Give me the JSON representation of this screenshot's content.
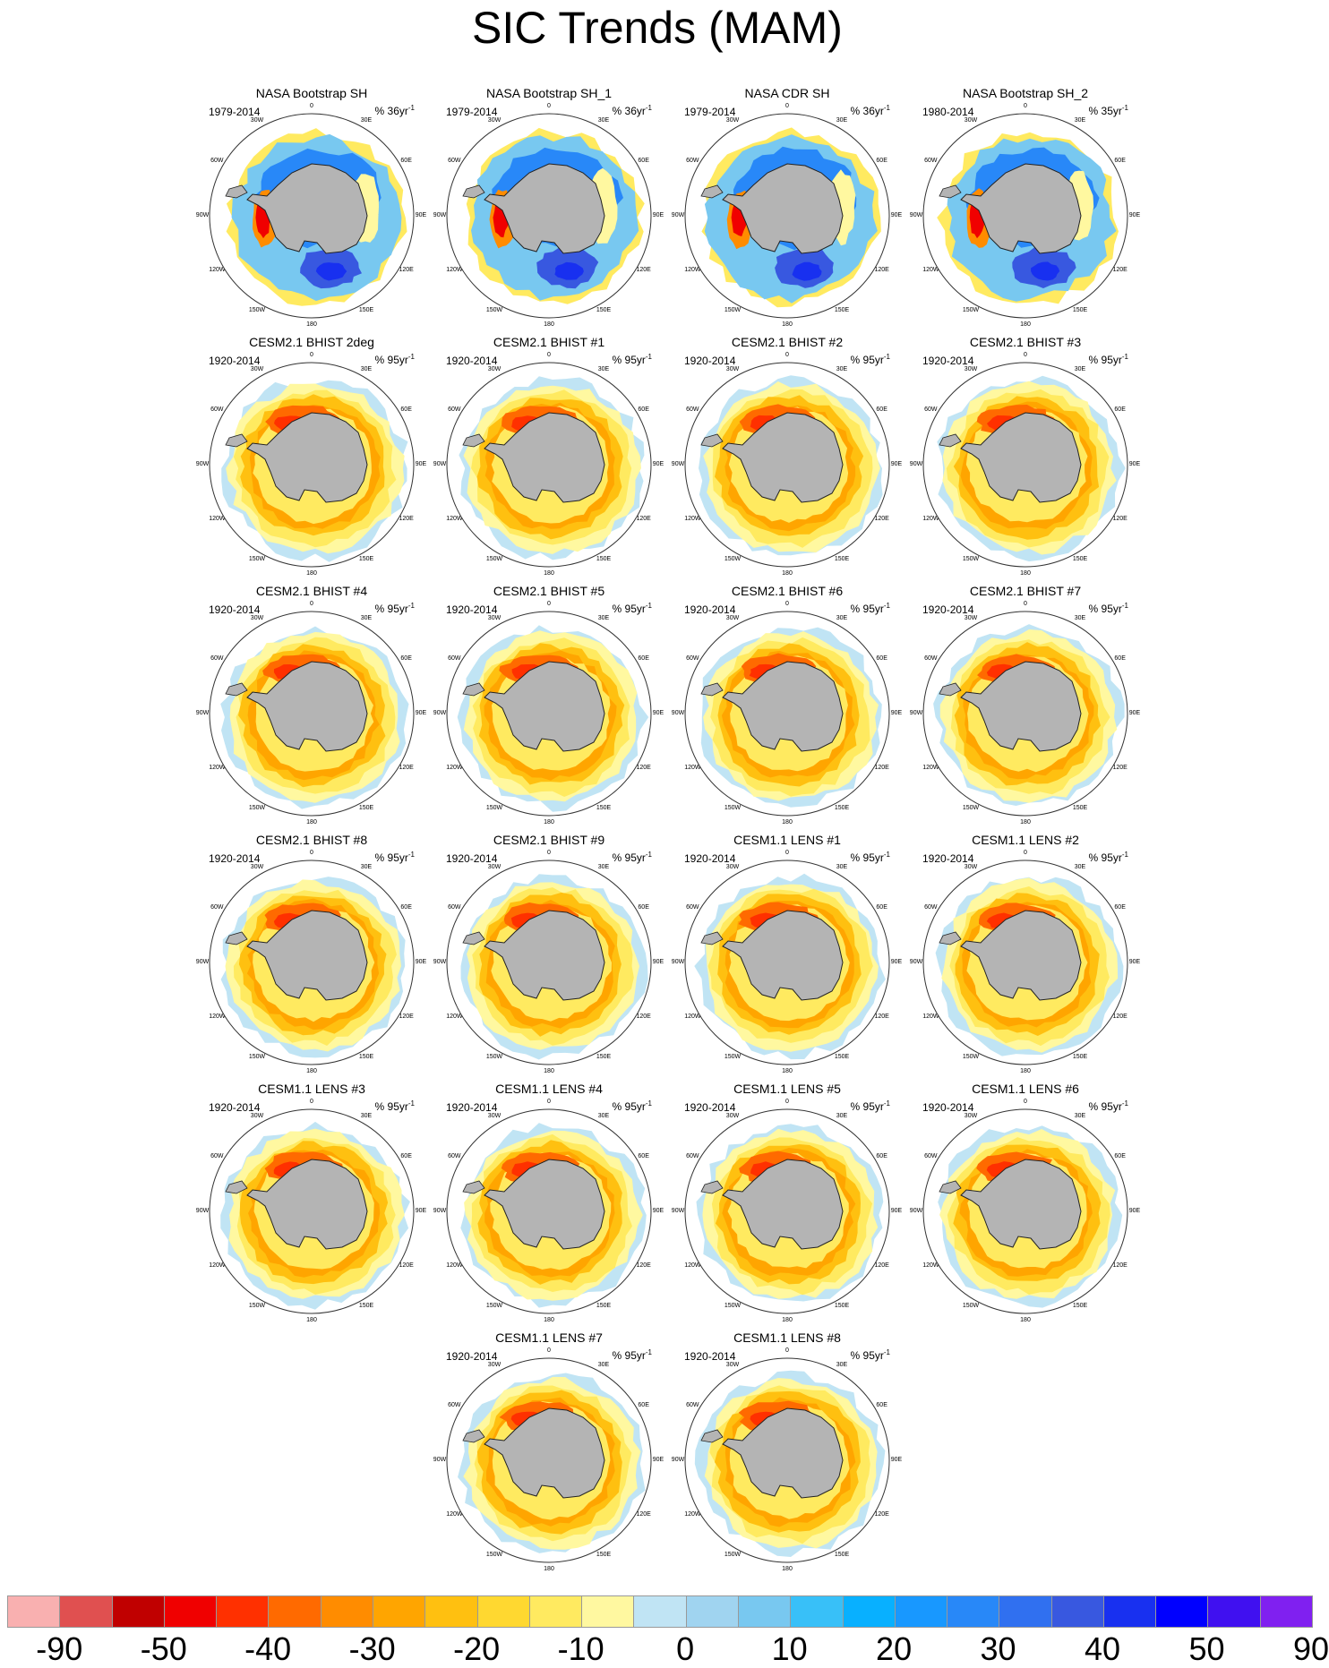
{
  "title": "SIC Trends (MAM)",
  "ring_labels": [
    "0",
    "30E",
    "60E",
    "90E",
    "120E",
    "150E",
    "180",
    "150W",
    "120W",
    "90W",
    "60W",
    "30W"
  ],
  "panels": [
    {
      "title": "NASA Bootstrap SH",
      "period": "1979-2014",
      "units": "% 36yr",
      "pattern": "obs"
    },
    {
      "title": "NASA Bootstrap SH_1",
      "period": "1979-2014",
      "units": "% 36yr",
      "pattern": "obs"
    },
    {
      "title": "NASA CDR SH",
      "period": "1979-2014",
      "units": "% 36yr",
      "pattern": "obs"
    },
    {
      "title": "NASA Bootstrap SH_2",
      "period": "1980-2014",
      "units": "% 35yr",
      "pattern": "obs"
    },
    {
      "title": "CESM2.1 BHIST 2deg",
      "period": "1920-2014",
      "units": "% 95yr",
      "pattern": "model"
    },
    {
      "title": "CESM2.1 BHIST #1",
      "period": "1920-2014",
      "units": "% 95yr",
      "pattern": "model"
    },
    {
      "title": "CESM2.1 BHIST #2",
      "period": "1920-2014",
      "units": "% 95yr",
      "pattern": "model"
    },
    {
      "title": "CESM2.1 BHIST #3",
      "period": "1920-2014",
      "units": "% 95yr",
      "pattern": "model"
    },
    {
      "title": "CESM2.1 BHIST #4",
      "period": "1920-2014",
      "units": "% 95yr",
      "pattern": "model"
    },
    {
      "title": "CESM2.1 BHIST #5",
      "period": "1920-2014",
      "units": "% 95yr",
      "pattern": "model"
    },
    {
      "title": "CESM2.1 BHIST #6",
      "period": "1920-2014",
      "units": "% 95yr",
      "pattern": "model"
    },
    {
      "title": "CESM2.1 BHIST #7",
      "period": "1920-2014",
      "units": "% 95yr",
      "pattern": "model"
    },
    {
      "title": "CESM2.1 BHIST #8",
      "period": "1920-2014",
      "units": "% 95yr",
      "pattern": "model"
    },
    {
      "title": "CESM2.1 BHIST #9",
      "period": "1920-2014",
      "units": "% 95yr",
      "pattern": "model"
    },
    {
      "title": "CESM1.1 LENS #1",
      "period": "1920-2014",
      "units": "% 95yr",
      "pattern": "model"
    },
    {
      "title": "CESM1.1 LENS #2",
      "period": "1920-2014",
      "units": "% 95yr",
      "pattern": "model"
    },
    {
      "title": "CESM1.1 LENS #3",
      "period": "1920-2014",
      "units": "% 95yr",
      "pattern": "model"
    },
    {
      "title": "CESM1.1 LENS #4",
      "period": "1920-2014",
      "units": "% 95yr",
      "pattern": "model"
    },
    {
      "title": "CESM1.1 LENS #5",
      "period": "1920-2014",
      "units": "% 95yr",
      "pattern": "model"
    },
    {
      "title": "CESM1.1 LENS #6",
      "period": "1920-2014",
      "units": "% 95yr",
      "pattern": "model"
    },
    {
      "title": "CESM1.1 LENS #7",
      "period": "1920-2014",
      "units": "% 95yr",
      "pattern": "model"
    },
    {
      "title": "CESM1.1 LENS #8",
      "period": "1920-2014",
      "units": "% 95yr",
      "pattern": "model"
    }
  ],
  "units_superscript": "-1",
  "colorbar": {
    "colors": [
      "#f9b0b0",
      "#e05050",
      "#c00000",
      "#f00000",
      "#ff3000",
      "#ff6a00",
      "#ff8c00",
      "#ffa500",
      "#ffc010",
      "#ffd830",
      "#ffea60",
      "#fff8a0",
      "#c0e4f4",
      "#a0d4f0",
      "#78c8f0",
      "#38c0f8",
      "#08b0ff",
      "#1898ff",
      "#2888f8",
      "#3070f0",
      "#3858e0",
      "#1830f0",
      "#0000ff",
      "#4010f0",
      "#8020f0"
    ],
    "tick_labels": [
      "-90",
      "-50",
      "-40",
      "-30",
      "-20",
      "-10",
      "0",
      "10",
      "20",
      "30",
      "40",
      "50",
      "90"
    ]
  }
}
